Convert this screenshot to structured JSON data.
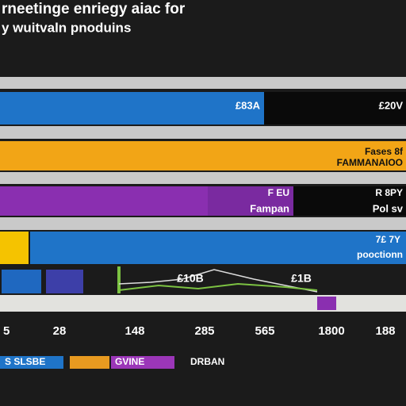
{
  "header": {
    "title": "rneetinge enriegy aiac for",
    "subtitle": "y wuitvaln pnoduins"
  },
  "rows": [
    {
      "labels": [
        "£83A",
        "£20V"
      ]
    },
    {
      "labels": [
        "Fases 8f",
        "FAMMANAIOO"
      ]
    },
    {
      "labels": [
        "F EU",
        "Fampan",
        "R 8PY",
        "Pol sv"
      ]
    },
    {
      "labels": [
        "7£ 7Y",
        "pooctionn"
      ]
    },
    {
      "labels": [
        "£10B",
        "£1B"
      ]
    }
  ],
  "axis": {
    "ticks": [
      "5",
      "28",
      "148",
      "285",
      "565",
      "1800",
      "188"
    ]
  },
  "legend": {
    "items": [
      "S SLSBE",
      "GVINE",
      "DRBAN"
    ]
  }
}
